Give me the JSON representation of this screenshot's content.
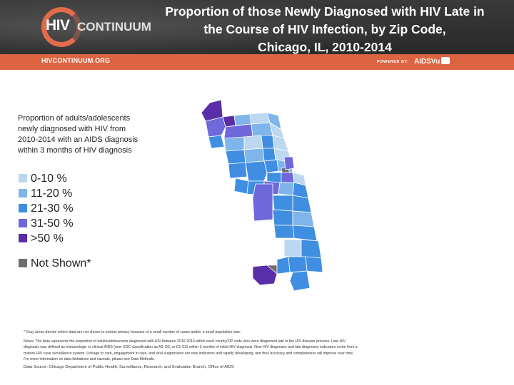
{
  "header": {
    "logo_prefix": "HIV",
    "logo_word": "CONTINUUM",
    "title": "Proportion of those Newly Diagnosed with HIV Late in\nthe Course of HIV Infection, by Zip Code,\nChicago, IL, 2010-2014",
    "site_url": "HIVCONTINUUM.ORG",
    "powered_by": "POWERED BY:",
    "partner": "AIDSVu"
  },
  "legend": {
    "description": "Proportion of adults/adolescents newly diagnosed with HIV from 2010-2014 with an AIDS diagnosis within 3 months of HIV diagnosis",
    "items": [
      {
        "label": "0-10 %",
        "color": "#bcd7f0"
      },
      {
        "label": "11-20 %",
        "color": "#7fb5ea"
      },
      {
        "label": "21-30 %",
        "color": "#3f8ee2"
      },
      {
        "label": "31-50 %",
        "color": "#6f68db"
      },
      {
        "label": ">50 %",
        "color": "#5a2ea8"
      }
    ],
    "not_shown": {
      "label": "Not Shown*",
      "color": "#6e6e6e"
    }
  },
  "footnotes": {
    "star": "* Gray areas denote where data are not shown to protect privacy because of a small number of cases and/or a small population size.",
    "note": "Notes: The data represents the proportion of adults/adolescents diagnosed with HIV between 2010-2014 within each county/ZIP code who were diagnosed late in the HIV disease process. Late HIV diagnosis was defined as immunologic or clinical AIDS (new CDC classification as A3, B3, or C1-C3) within 3 months of initial HIV diagnosis. New HIV diagnoses and late diagnoses indicators come from a mature HIV case surveillance system. Linkage to care, engagement in care, and viral suppression are new indicators and rapidly developing, and thus accuracy and completeness will improve over time. For more information on data limitations and caveats, please see Data Methods.",
    "source": "Data Source: Chicago Department of Public Health, Surveillance, Research, and Evaluation Branch, Office of AIDS"
  }
}
